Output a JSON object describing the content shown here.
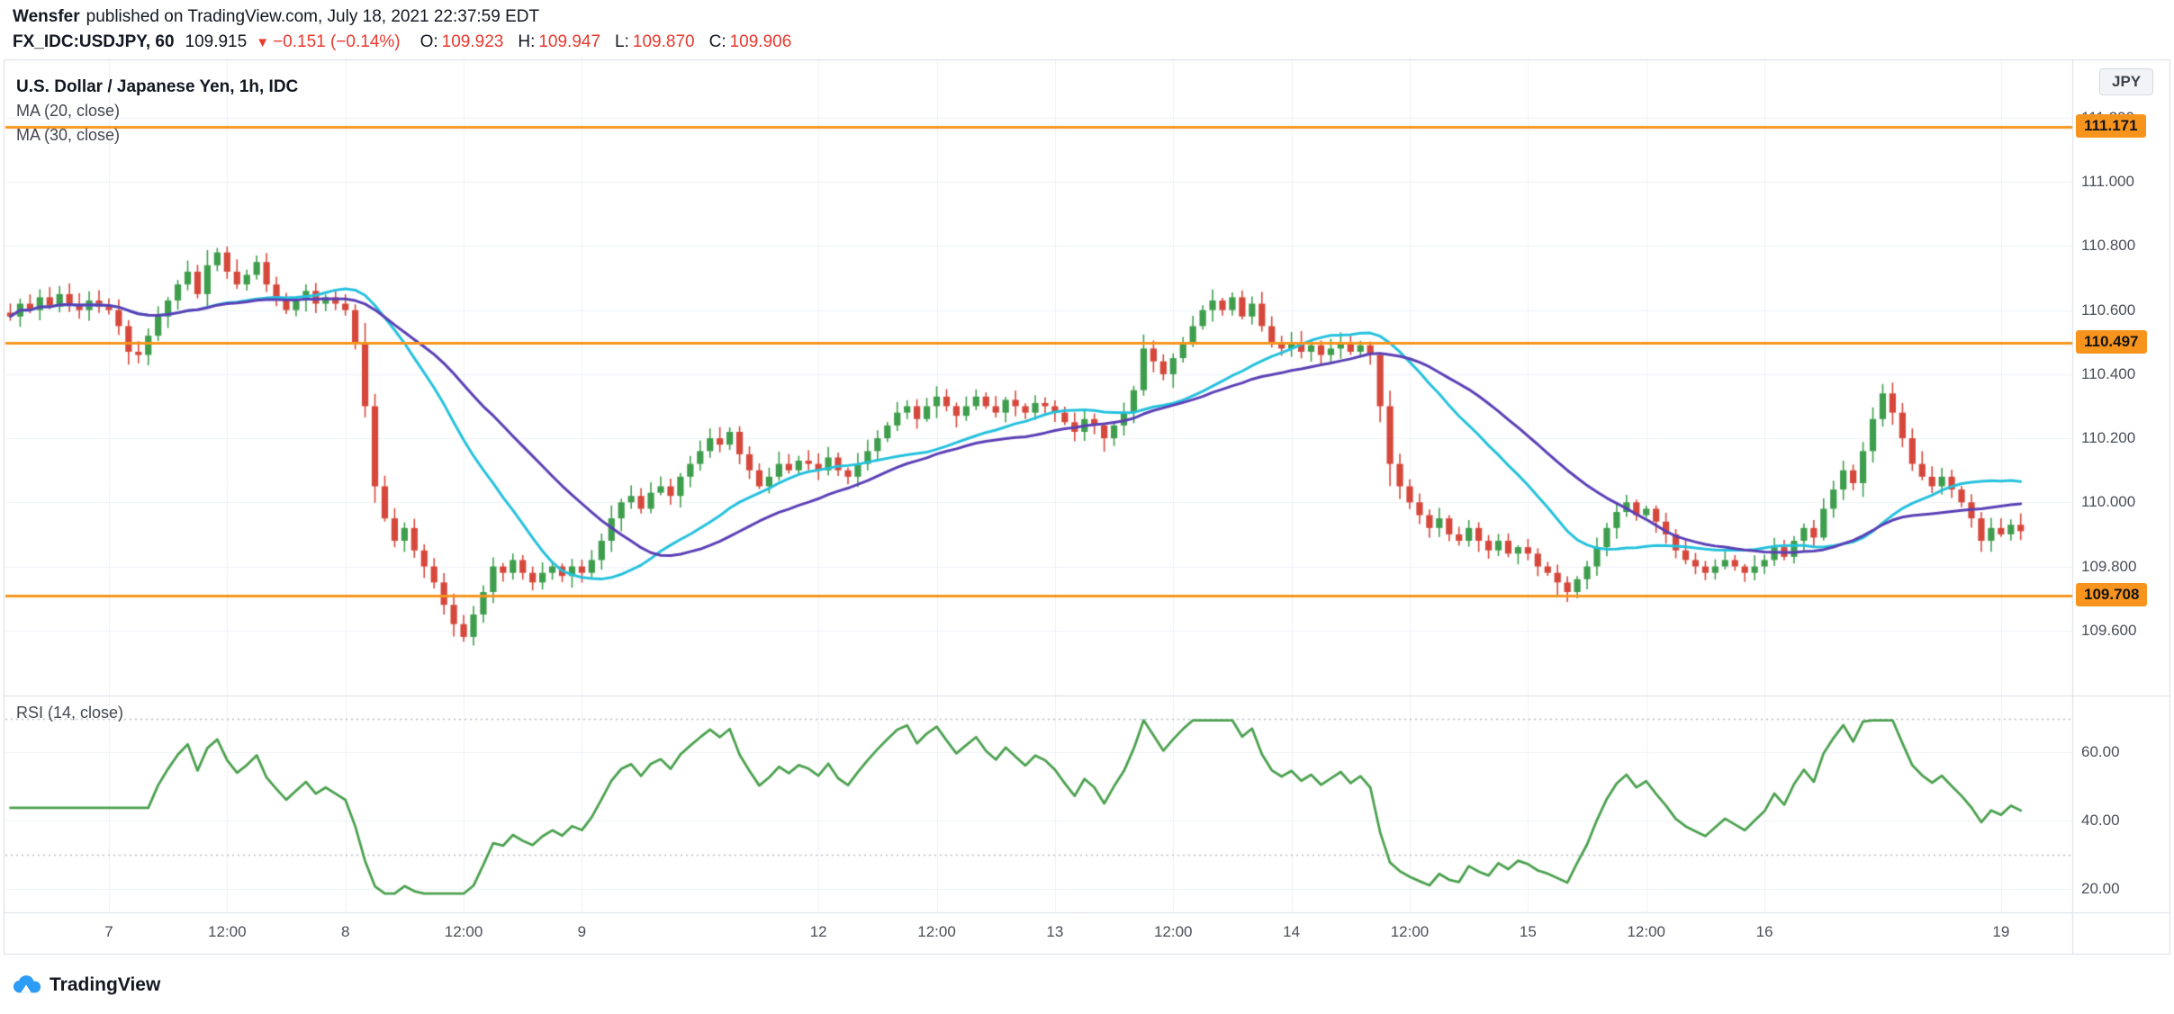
{
  "header": {
    "publisher": "Wensfer",
    "published_text": "published on TradingView.com, July 18, 2021 22:37:59 EDT"
  },
  "quote": {
    "symbol": "FX_IDC:USDJPY, 60",
    "last": "109.915",
    "direction_icon": "▼",
    "change": "−0.151 (−0.14%)",
    "ohlc": [
      {
        "label": "O:",
        "value": "109.923"
      },
      {
        "label": "H:",
        "value": "109.947"
      },
      {
        "label": "L:",
        "value": "109.870"
      },
      {
        "label": "C:",
        "value": "109.906"
      }
    ]
  },
  "footer": {
    "brand": "TradingView"
  },
  "chart_data": {
    "type": "candlestick",
    "title": "U.S. Dollar / Japanese Yen, 1h, IDC",
    "timeframe": "1h",
    "indicators": [
      {
        "label": "MA (20, close)",
        "period": 20
      },
      {
        "label": "MA (30, close)",
        "period": 30
      }
    ],
    "rsi": {
      "label": "RSI (14, close)",
      "period": 14,
      "yticks": [
        60,
        40,
        20
      ],
      "bands": [
        70,
        30
      ],
      "ylim": [
        13,
        76
      ]
    },
    "price_axis": {
      "currency": "JPY",
      "ylim": [
        109.4,
        111.36
      ],
      "yticks": [
        111.2,
        111.0,
        110.8,
        110.6,
        110.4,
        110.2,
        110.0,
        109.8,
        109.6
      ]
    },
    "hlines": {
      "values": [
        111.171,
        110.497,
        109.708
      ]
    },
    "xticks": [
      {
        "index": 10,
        "label": "7"
      },
      {
        "index": 22,
        "label": "12:00"
      },
      {
        "index": 34,
        "label": "8"
      },
      {
        "index": 46,
        "label": "12:00"
      },
      {
        "index": 58,
        "label": "9"
      },
      {
        "index": 82,
        "label": "12"
      },
      {
        "index": 94,
        "label": "12:00"
      },
      {
        "index": 106,
        "label": "13"
      },
      {
        "index": 118,
        "label": "12:00"
      },
      {
        "index": 130,
        "label": "14"
      },
      {
        "index": 142,
        "label": "12:00"
      },
      {
        "index": 154,
        "label": "15"
      },
      {
        "index": 166,
        "label": "12:00"
      },
      {
        "index": 178,
        "label": "16"
      },
      {
        "index": 202,
        "label": "19"
      }
    ],
    "closes": [
      110.58,
      110.62,
      110.6,
      110.64,
      110.61,
      110.65,
      110.62,
      110.6,
      110.63,
      110.61,
      110.6,
      110.55,
      110.47,
      110.46,
      110.52,
      110.58,
      110.63,
      110.68,
      110.72,
      110.65,
      110.74,
      110.78,
      110.72,
      110.68,
      110.71,
      110.75,
      110.68,
      110.64,
      110.6,
      110.63,
      110.66,
      110.62,
      110.64,
      110.62,
      110.6,
      110.5,
      110.3,
      110.05,
      109.95,
      109.88,
      109.92,
      109.85,
      109.8,
      109.75,
      109.68,
      109.62,
      109.58,
      109.65,
      109.72,
      109.8,
      109.78,
      109.82,
      109.78,
      109.75,
      109.78,
      109.8,
      109.77,
      109.8,
      109.78,
      109.82,
      109.88,
      109.95,
      110.0,
      110.02,
      109.98,
      110.03,
      110.05,
      110.02,
      110.08,
      110.12,
      110.16,
      110.2,
      110.18,
      110.22,
      110.15,
      110.1,
      110.05,
      110.08,
      110.12,
      110.1,
      110.13,
      110.12,
      110.1,
      110.14,
      110.1,
      110.08,
      110.12,
      110.16,
      110.2,
      110.24,
      110.28,
      110.3,
      110.26,
      110.3,
      110.33,
      110.3,
      110.27,
      110.3,
      110.33,
      110.3,
      110.28,
      110.32,
      110.3,
      110.28,
      110.31,
      110.3,
      110.28,
      110.25,
      110.22,
      110.26,
      110.24,
      110.2,
      110.24,
      110.28,
      110.35,
      110.48,
      110.44,
      110.4,
      110.45,
      110.5,
      110.55,
      110.6,
      110.63,
      110.6,
      110.64,
      110.58,
      110.62,
      110.55,
      110.5,
      110.48,
      110.5,
      110.47,
      110.49,
      110.46,
      110.48,
      110.5,
      110.47,
      110.49,
      110.46,
      110.3,
      110.12,
      110.05,
      110.0,
      109.96,
      109.92,
      109.95,
      109.9,
      109.88,
      109.92,
      109.88,
      109.85,
      109.88,
      109.84,
      109.86,
      109.84,
      109.8,
      109.78,
      109.75,
      109.72,
      109.76,
      109.8,
      109.86,
      109.92,
      109.97,
      110.0,
      109.96,
      109.98,
      109.94,
      109.9,
      109.85,
      109.82,
      109.8,
      109.78,
      109.8,
      109.82,
      109.8,
      109.78,
      109.8,
      109.82,
      109.86,
      109.83,
      109.88,
      109.92,
      109.89,
      109.98,
      110.04,
      110.1,
      110.06,
      110.16,
      110.26,
      110.34,
      110.28,
      110.2,
      110.12,
      110.08,
      110.05,
      110.08,
      110.04,
      110.0,
      109.95,
      109.88,
      109.92,
      109.9,
      109.93,
      109.91
    ],
    "colors": {
      "up": "#3f9e4d",
      "down": "#d6483c",
      "ma20": "#25c1dd",
      "ma30": "#5b3fb5",
      "rsi": "#4ba14f",
      "hline": "#f7941e",
      "grid": "#eef1f8",
      "band": "#b6bac4",
      "frame": "#d9dde5",
      "axis_text": "#4a4e59"
    }
  }
}
